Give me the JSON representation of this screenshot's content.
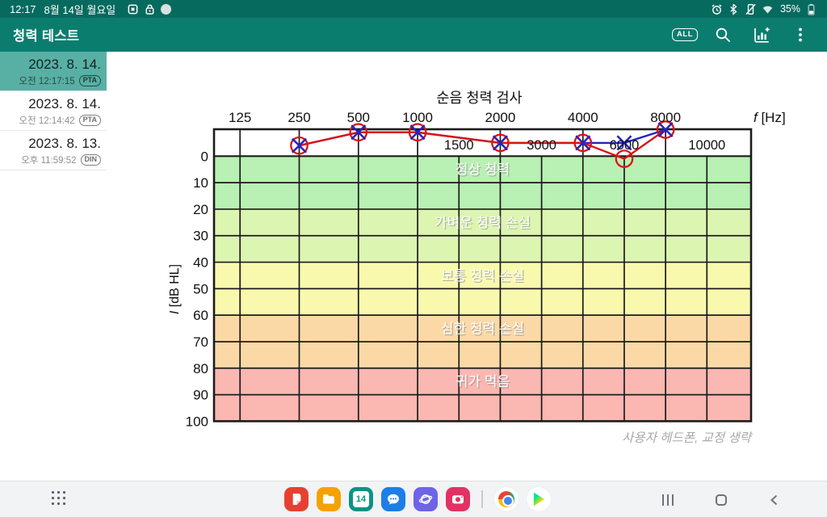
{
  "colors": {
    "status_bar_bg": "#076a5f",
    "app_bar_bg": "#0b7d6f",
    "selected_item_bg": "#58b0a5",
    "series_circle": "#d91414",
    "series_x": "#2222c8"
  },
  "status_bar": {
    "time": "12:17",
    "date": "8월 14일 월요일",
    "battery_percent": "35%",
    "notification_icons": [
      "app-notification",
      "lock",
      "messenger"
    ],
    "system_icons": [
      "alarm",
      "bluetooth",
      "mute",
      "wifi",
      "battery"
    ]
  },
  "app_bar": {
    "title": "청력 테스트",
    "actions": {
      "all_label": "ALL"
    }
  },
  "sidebar": {
    "items": [
      {
        "date": "2023. 8. 14.",
        "time": "오전 12:17:15",
        "badge": "PTA",
        "selected": true
      },
      {
        "date": "2023. 8. 14.",
        "time": "오전 12:14:42",
        "badge": "PTA",
        "selected": false
      },
      {
        "date": "2023. 8. 13.",
        "time": "오후 11:59:52",
        "badge": "DIN",
        "selected": false
      }
    ]
  },
  "chart_data": {
    "type": "line",
    "title": "순음 청력 검사",
    "x_axis_label_f": "f",
    "x_axis_label_unit": "[Hz]",
    "y_axis_label_i": "I",
    "y_axis_label_unit": "[dB HL]",
    "x_octave_ticks": [
      125,
      250,
      500,
      1000,
      2000,
      4000,
      8000
    ],
    "x_half_ticks": [
      1500,
      3000,
      6000,
      10000
    ],
    "x_grid_ticks": [
      125,
      250,
      500,
      1000,
      1500,
      2000,
      3000,
      4000,
      6000,
      8000,
      10000
    ],
    "y_ticks": [
      0,
      10,
      20,
      30,
      40,
      50,
      60,
      70,
      80,
      90,
      100
    ],
    "ylim": [
      -10,
      100
    ],
    "y_axis_inverted": true,
    "grid": true,
    "legend": "none",
    "zones": [
      {
        "from_db": 0,
        "to_db": 20,
        "label": "정상 청력",
        "color": "#b9f0b3"
      },
      {
        "from_db": 20,
        "to_db": 40,
        "label": "가벼운 청력 손실",
        "color": "#dcf5b0"
      },
      {
        "from_db": 40,
        "to_db": 60,
        "label": "보통 청력 손실",
        "color": "#f9f9ae"
      },
      {
        "from_db": 60,
        "to_db": 80,
        "label": "심한 청력 손실",
        "color": "#fbd9a7"
      },
      {
        "from_db": 80,
        "to_db": 100,
        "label": "귀가 먹음",
        "color": "#fbb7b1"
      }
    ],
    "series": [
      {
        "name": "O",
        "marker": "circle",
        "color": "#d91414",
        "points": [
          {
            "f": 250,
            "db": -4
          },
          {
            "f": 500,
            "db": -9
          },
          {
            "f": 1000,
            "db": -9
          },
          {
            "f": 2000,
            "db": -5
          },
          {
            "f": 4000,
            "db": -5
          },
          {
            "f": 6000,
            "db": 1
          },
          {
            "f": 8000,
            "db": -10
          }
        ]
      },
      {
        "name": "X",
        "marker": "x",
        "color": "#2222c8",
        "points": [
          {
            "f": 250,
            "db": -4
          },
          {
            "f": 500,
            "db": -9
          },
          {
            "f": 1000,
            "db": -9
          },
          {
            "f": 2000,
            "db": -5
          },
          {
            "f": 4000,
            "db": -5
          },
          {
            "f": 6000,
            "db": -5
          },
          {
            "f": 8000,
            "db": -10
          }
        ]
      }
    ],
    "caption": "사용자 헤드폰, 교정 생략"
  },
  "dock": {
    "calendar_day": "14",
    "apps": [
      "notes",
      "my-files",
      "calendar",
      "messages",
      "internet",
      "camera",
      "chrome",
      "play-store"
    ]
  }
}
